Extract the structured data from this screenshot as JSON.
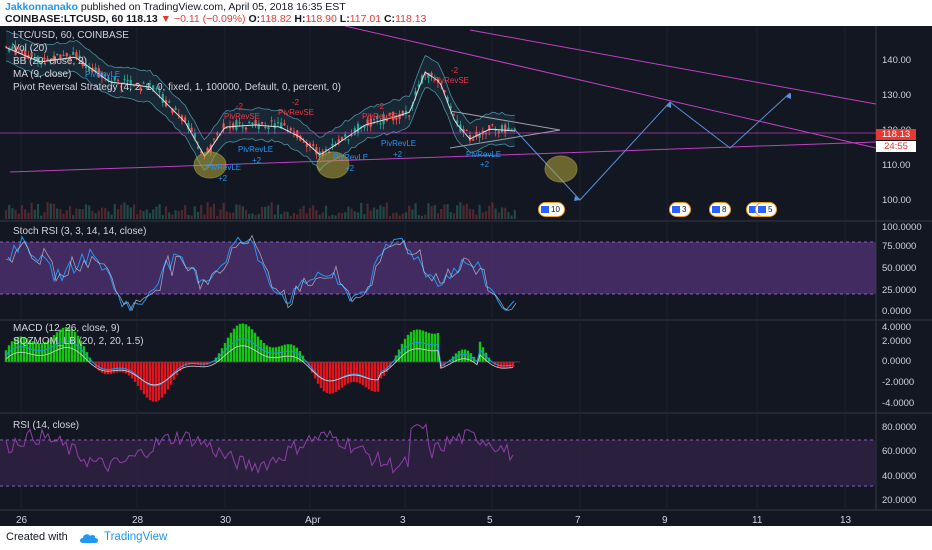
{
  "header": {
    "author": "Jakkonnanako",
    "published": "published on TradingView.com, April 05, 2018 16:35 EST",
    "symbol": "COINBASE:LTCUSD, 60",
    "last": "118.13",
    "change": "−0.11 (−0.09%)",
    "o_label": "O:",
    "o": "118.82",
    "h_label": "H:",
    "h": "118.90",
    "l_label": "L:",
    "l": "117.01",
    "c_label": "C:",
    "c": "118.13"
  },
  "price_pane": {
    "legend": [
      "LTC/USD, 60, COINBASE",
      "Vol (20)",
      "BB (20, close, 2)",
      "MA (9, close)",
      "Pivot Reversal Strategy (4, 2, 1, 0, fixed, 1, 100000, Default, 0, percent, 0)"
    ],
    "y_ticks": [
      "140.00",
      "130.00",
      "120.00",
      "110.00",
      "100.00"
    ],
    "price_tag": "118.13",
    "countdown_tag": "24:55",
    "pivots": [
      {
        "text": "PivRevLE",
        "type": "le"
      },
      {
        "text": "-2",
        "type": "se"
      },
      {
        "text": "PivRevSE",
        "type": "se"
      },
      {
        "text": "PivRevLE",
        "type": "le"
      },
      {
        "text": "+2",
        "type": "le"
      },
      {
        "text": "-2",
        "type": "se"
      },
      {
        "text": "PivRevSE",
        "type": "se"
      },
      {
        "text": "PivRevLE",
        "type": "le"
      },
      {
        "text": "+2",
        "type": "le"
      },
      {
        "text": "PivRevLE",
        "type": "le"
      },
      {
        "text": "+2",
        "type": "le"
      },
      {
        "text": "-2",
        "type": "se"
      },
      {
        "text": "PivRevSE",
        "type": "se"
      },
      {
        "text": "PivRevLE",
        "type": "le"
      },
      {
        "text": "+2",
        "type": "le"
      },
      {
        "text": "-2",
        "type": "se"
      },
      {
        "text": "PivRevSE",
        "type": "se"
      },
      {
        "text": "PivRevLE",
        "type": "le"
      },
      {
        "text": "+2",
        "type": "le"
      }
    ],
    "events": [
      "10",
      "3",
      "8",
      "28",
      "5",
      "3"
    ]
  },
  "stoch_pane": {
    "legend": "Stoch RSI (3, 3, 14, 14, close)",
    "y_ticks": [
      "100.0000",
      "75.0000",
      "50.0000",
      "25.0000",
      "0.0000"
    ]
  },
  "macd_pane": {
    "legend": [
      "MACD (12, 26, close, 9)",
      "SQZMOM_LB (20, 2, 20, 1.5)"
    ],
    "y_ticks": [
      "4.0000",
      "2.0000",
      "0.0000",
      "-2.0000",
      "-4.0000"
    ]
  },
  "rsi_pane": {
    "legend": "RSI (14, close)",
    "y_ticks": [
      "80.0000",
      "60.0000",
      "40.0000",
      "20.0000"
    ]
  },
  "x_ticks": [
    "26",
    "28",
    "30",
    "Apr",
    "3",
    "5",
    "7",
    "9",
    "11",
    "13"
  ],
  "footer": {
    "created": "Created with",
    "brand": "TradingView"
  },
  "colors": {
    "background": "#131722",
    "up": "#26a69a",
    "down": "#ef5350",
    "trendline": "#c040c0",
    "projection": "#5b8fd6",
    "price_tag": "#e53935",
    "stoch_band": "#4a2f6b",
    "rsi_band": "#2e2140"
  }
}
